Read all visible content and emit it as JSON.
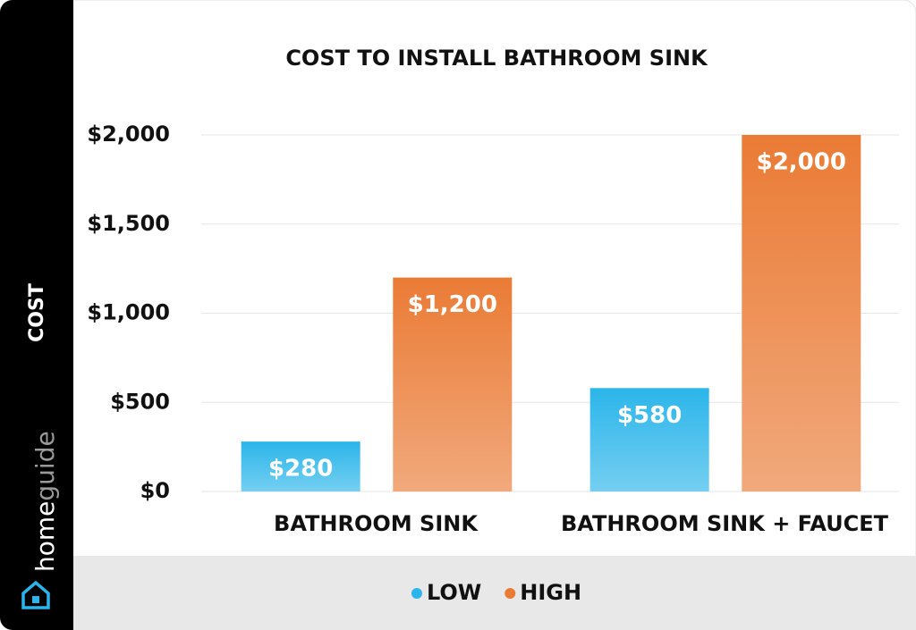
{
  "chart_data": {
    "type": "bar",
    "title": "COST TO INSTALL BATHROOM SINK",
    "ylabel": "COST",
    "categories": [
      "BATHROOM SINK",
      "BATHROOM SINK + FAUCET"
    ],
    "series": [
      {
        "name": "LOW",
        "color": "#2bb5ea",
        "values": [
          280,
          580
        ],
        "value_labels": [
          "$280",
          "$580"
        ]
      },
      {
        "name": "HIGH",
        "color": "#ea7b35",
        "values": [
          1200,
          2000
        ],
        "value_labels": [
          "$1,200",
          "$2,000"
        ]
      }
    ],
    "ylim": [
      0,
      2000
    ],
    "yticks": [
      {
        "value": 0,
        "label": "$0"
      },
      {
        "value": 500,
        "label": "$500"
      },
      {
        "value": 1000,
        "label": "$1,000"
      },
      {
        "value": 1500,
        "label": "$1,500"
      },
      {
        "value": 2000,
        "label": "$2,000"
      }
    ],
    "grid": true,
    "legend": "bottom"
  },
  "brand": [
    "home",
    "guide"
  ]
}
